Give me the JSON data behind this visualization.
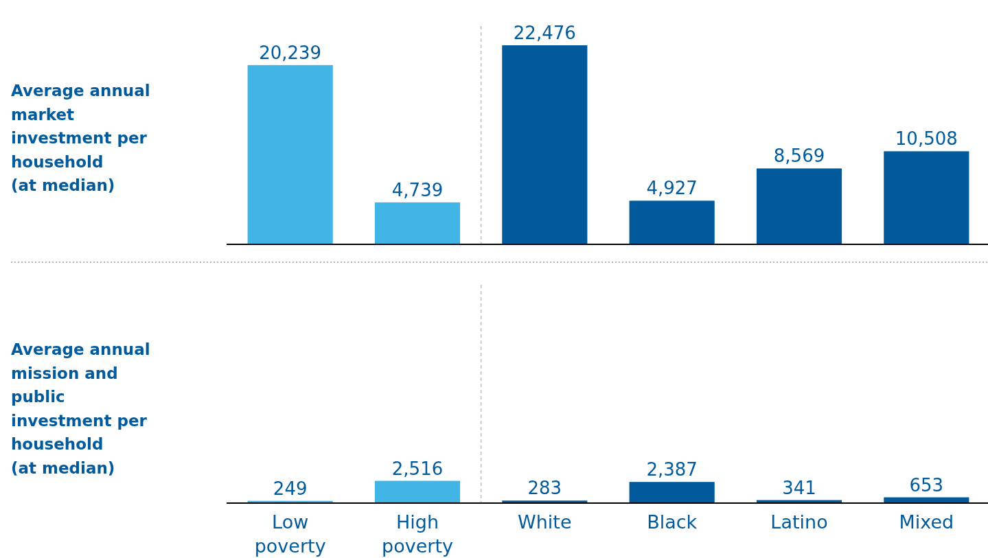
{
  "chart_data": [
    {
      "type": "bar",
      "ylabel": "Average annual market investment per household (at median)",
      "categories": [
        null,
        null,
        null,
        null,
        null,
        null
      ],
      "values": [
        20239,
        4739,
        22476,
        4927,
        8569,
        10508
      ],
      "value_labels": [
        "20,239",
        "4,739",
        "22,476",
        "4,927",
        "8,569",
        "10,508"
      ],
      "colors": [
        "#41b6e6",
        "#41b6e6",
        "#005a9c",
        "#005a9c",
        "#005a9c",
        "#005a9c"
      ],
      "tick_labels": false
    },
    {
      "type": "bar",
      "ylabel": "Average annual mission and public investment per household (at median)",
      "categories": [
        "Low poverty",
        "High poverty",
        "White",
        "Black",
        "Latino",
        "Mixed"
      ],
      "values": [
        249,
        2516,
        283,
        2387,
        341,
        653
      ],
      "value_labels": [
        "249",
        "2,516",
        "283",
        "2,387",
        "341",
        "653"
      ],
      "colors": [
        "#41b6e6",
        "#41b6e6",
        "#005a9c",
        "#005a9c",
        "#005a9c",
        "#005a9c"
      ],
      "tick_labels": "x"
    }
  ]
}
